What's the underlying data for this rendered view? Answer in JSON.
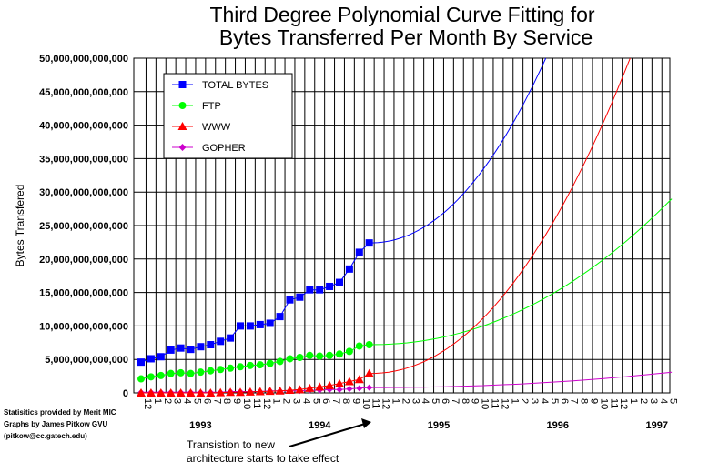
{
  "chart_data": {
    "type": "line",
    "title_line1": "Third Degree Polynomial Curve Fitting for",
    "title_line2": "Bytes Transferred Per Month By Service",
    "ylabel": "Bytes Transfered",
    "ylim": [
      0,
      50000000000000
    ],
    "y_ticks": [
      {
        "value": 0,
        "label": "0"
      },
      {
        "value": 5000000000000,
        "label": "5,000,000,000,000"
      },
      {
        "value": 10000000000000,
        "label": "10,000,000,000,000"
      },
      {
        "value": 15000000000000,
        "label": "15,000,000,000,000"
      },
      {
        "value": 20000000000000,
        "label": "20,000,000,000,000"
      },
      {
        "value": 25000000000000,
        "label": "25,000,000,000,000"
      },
      {
        "value": 30000000000000,
        "label": "30,000,000,000,000"
      },
      {
        "value": 35000000000000,
        "label": "35,000,000,000,000"
      },
      {
        "value": 40000000000000,
        "label": "40,000,000,000,000"
      },
      {
        "value": 45000000000000,
        "label": "45,000,000,000,000"
      },
      {
        "value": 50000000000000,
        "label": "50,000,000,000,000"
      }
    ],
    "x_tick_labels": [
      "12",
      "1",
      "2",
      "3",
      "4",
      "5",
      "6",
      "7",
      "8",
      "9",
      "10",
      "11",
      "12",
      "1",
      "2",
      "3",
      "4",
      "5",
      "6",
      "7",
      "8",
      "9",
      "10",
      "11",
      "12",
      "1",
      "2",
      "3",
      "4",
      "5",
      "6",
      "7",
      "8",
      "9",
      "10",
      "11",
      "12",
      "1",
      "2",
      "3",
      "4",
      "5",
      "6",
      "7",
      "8",
      "9",
      "10",
      "11",
      "12",
      "1",
      "2",
      "3",
      "4",
      "5"
    ],
    "year_labels": [
      {
        "label": "1993",
        "month_index": 6
      },
      {
        "label": "1994",
        "month_index": 18
      },
      {
        "label": "1995",
        "month_index": 30
      },
      {
        "label": "1996",
        "month_index": 42
      },
      {
        "label": "1997",
        "month_index": 52
      }
    ],
    "legend": {
      "placement": "top-left"
    },
    "series": [
      {
        "name": "TOTAL BYTES",
        "color": "#0000ff",
        "marker": "square",
        "values": [
          4600000000000.0,
          5100000000000.0,
          5400000000000.0,
          6400000000000.0,
          6700000000000.0,
          6500000000000.0,
          6900000000000.0,
          7200000000000.0,
          7700000000000.0,
          8200000000000.0,
          10000000000000.0,
          10000000000000.0,
          10200000000000.0,
          10400000000000.0,
          11400000000000.0,
          13900000000000.0,
          14300000000000.0,
          15400000000000.0,
          15400000000000.0,
          15900000000000.0,
          16500000000000.0,
          18500000000000.0,
          21000000000000.0,
          22400000000000.0
        ],
        "fit_end": {
          "month_index": 40.8,
          "value": 50000000000000.0
        }
      },
      {
        "name": "FTP",
        "color": "#00ff00",
        "marker": "circle",
        "values": [
          2100000000000.0,
          2400000000000.0,
          2600000000000.0,
          2900000000000.0,
          3000000000000.0,
          2900000000000.0,
          3100000000000.0,
          3300000000000.0,
          3500000000000.0,
          3700000000000.0,
          3900000000000.0,
          4100000000000.0,
          4200000000000.0,
          4400000000000.0,
          4700000000000.0,
          5100000000000.0,
          5300000000000.0,
          5600000000000.0,
          5500000000000.0,
          5600000000000.0,
          5800000000000.0,
          6200000000000.0,
          7000000000000.0,
          7200000000000.0
        ],
        "fit_end": {
          "month_index": 53.5,
          "value": 29000000000000.0
        }
      },
      {
        "name": "WWW",
        "color": "#ff0000",
        "marker": "triangle",
        "values": [
          0,
          0,
          0,
          0,
          0,
          0,
          0,
          0,
          50000000000.0,
          100000000000.0,
          100000000000.0,
          150000000000.0,
          200000000000.0,
          250000000000.0,
          300000000000.0,
          400000000000.0,
          500000000000.0,
          700000000000.0,
          900000000000.0,
          1100000000000.0,
          1400000000000.0,
          1700000000000.0,
          2000000000000.0,
          2900000000000.0
        ],
        "fit_end": {
          "month_index": 49.3,
          "value": 50000000000000.0
        }
      },
      {
        "name": "GOPHER",
        "color": "#cc00cc",
        "marker": "diamond",
        "values": [
          100000000000.0,
          100000000000.0,
          100000000000.0,
          100000000000.0,
          100000000000.0,
          100000000000.0,
          100000000000.0,
          100000000000.0,
          100000000000.0,
          200000000000.0,
          200000000000.0,
          200000000000.0,
          200000000000.0,
          300000000000.0,
          300000000000.0,
          300000000000.0,
          300000000000.0,
          400000000000.0,
          400000000000.0,
          500000000000.0,
          500000000000.0,
          600000000000.0,
          700000000000.0,
          800000000000.0
        ],
        "fit_end": {
          "month_index": 53.5,
          "value": 3100000000000.0
        }
      }
    ],
    "credits": [
      "Statisitics provided by Merit MIC",
      "Graphs by James  Pitkow  GVU",
      "(pitkow@cc.gatech.edu)"
    ],
    "annotation": {
      "line1": "Transistion to new",
      "line2": "architecture starts to take effect",
      "points_to_month_index": 24
    }
  }
}
